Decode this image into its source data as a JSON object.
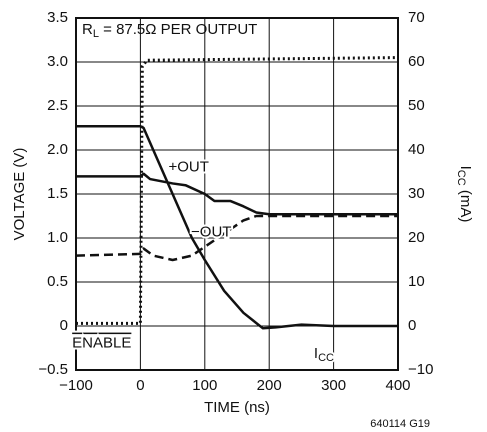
{
  "chart_data": {
    "type": "line",
    "xlabel": "TIME (ns)",
    "ylabel": "VOLTAGE (V)",
    "y2label": {
      "main": "I",
      "sub": "CC",
      "rest": " (mA)"
    },
    "annotation": {
      "main": "R",
      "sub": "L",
      "rest": " = 87.5Ω PER OUTPUT"
    },
    "footnote": "640114 G19",
    "xlim": [
      -100,
      400
    ],
    "xticks": [
      {
        "value": -100,
        "label": "−100"
      },
      0,
      100,
      200,
      300,
      400
    ],
    "ylim": [
      -0.5,
      3.5
    ],
    "yticks": [
      {
        "value": -0.5,
        "label": "−0.5"
      },
      0,
      0.5,
      {
        "value": 1.0,
        "label": "1.0"
      },
      1.5,
      {
        "value": 2.0,
        "label": "2.0"
      },
      2.5,
      {
        "value": 3.0,
        "label": "3.0"
      },
      3.5
    ],
    "y2lim": [
      -10,
      70
    ],
    "y2ticks": [
      {
        "value": -10,
        "label": "−10"
      },
      0,
      10,
      20,
      30,
      40,
      50,
      60,
      70
    ],
    "grid": true,
    "series": [
      {
        "name": "ENABLE",
        "color": "#111",
        "style": "dotted",
        "overline": true,
        "x": [
          -100,
          0,
          3,
          10,
          400
        ],
        "values": [
          0.03,
          0.03,
          2.95,
          3.02,
          3.05
        ]
      },
      {
        "name": "I",
        "sub": "CC",
        "color": "#111",
        "style": "solid",
        "axis": "y2",
        "x": [
          -100,
          0,
          5,
          20,
          50,
          80,
          100,
          130,
          160,
          190,
          210,
          250,
          300,
          400
        ],
        "values": [
          45.4,
          45.4,
          45,
          40,
          30,
          20,
          15,
          8,
          3,
          -0.5,
          -0.3,
          0.3,
          0,
          0
        ]
      },
      {
        "name": "+OUT",
        "color": "#111",
        "style": "solid",
        "x": [
          -100,
          0,
          5,
          15,
          50,
          70,
          100,
          115,
          140,
          160,
          180,
          200,
          400
        ],
        "values": [
          1.7,
          1.7,
          1.73,
          1.67,
          1.62,
          1.6,
          1.5,
          1.42,
          1.42,
          1.36,
          1.29,
          1.27,
          1.27
        ]
      },
      {
        "name": "−OUT",
        "color": "#111",
        "style": "dashed",
        "x": [
          -100,
          0,
          5,
          20,
          50,
          80,
          100,
          130,
          160,
          180,
          400
        ],
        "values": [
          0.8,
          0.82,
          0.88,
          0.8,
          0.75,
          0.8,
          0.9,
          1.05,
          1.2,
          1.25,
          1.25
        ]
      }
    ]
  }
}
